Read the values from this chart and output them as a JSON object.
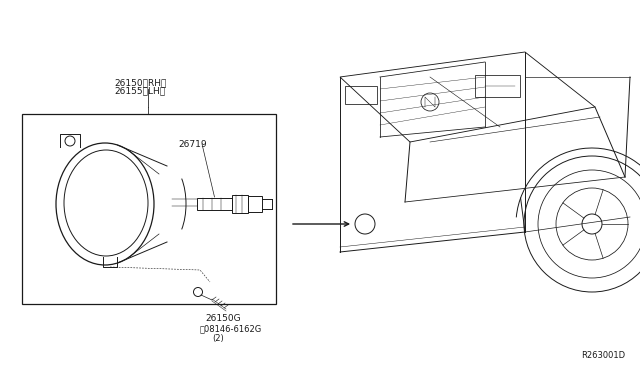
{
  "bg_color": "#ffffff",
  "line_color": "#1a1a1a",
  "ref_code": "R263001D",
  "label_26150": "26150〈RH〉",
  "label_26155": "26155〈LH〉",
  "label_26719": "26719",
  "label_26150G": "26150G",
  "label_bolt": "Ⓒ08146-6162G",
  "label_qty": "(2)",
  "figsize": [
    6.4,
    3.72
  ],
  "dpi": 100
}
